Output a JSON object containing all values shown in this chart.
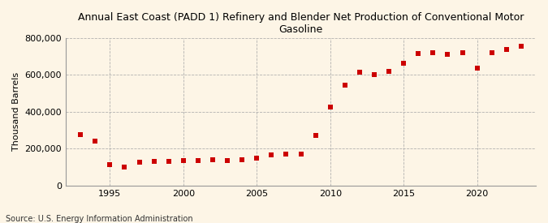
{
  "title": "Annual East Coast (PADD 1) Refinery and Blender Net Production of Conventional Motor\nGasoline",
  "ylabel": "Thousand Barrels",
  "source": "Source: U.S. Energy Information Administration",
  "background_color": "#fdf5e6",
  "plot_background_color": "#fdf5e6",
  "marker_color": "#cc0000",
  "years": [
    1993,
    1994,
    1995,
    1996,
    1997,
    1998,
    1999,
    2000,
    2001,
    2002,
    2003,
    2004,
    2005,
    2006,
    2007,
    2008,
    2009,
    2010,
    2011,
    2012,
    2013,
    2014,
    2015,
    2016,
    2017,
    2018,
    2019,
    2020,
    2021,
    2022,
    2023
  ],
  "values": [
    275000,
    240000,
    113000,
    100000,
    125000,
    130000,
    130000,
    135000,
    135000,
    140000,
    135000,
    140000,
    150000,
    165000,
    170000,
    170000,
    270000,
    425000,
    545000,
    615000,
    600000,
    620000,
    665000,
    715000,
    720000,
    710000,
    720000,
    635000,
    720000,
    740000,
    755000
  ],
  "ylim": [
    0,
    800000
  ],
  "xlim": [
    1992,
    2024
  ],
  "yticks": [
    0,
    200000,
    400000,
    600000,
    800000
  ],
  "xticks": [
    1995,
    2000,
    2005,
    2010,
    2015,
    2020
  ]
}
